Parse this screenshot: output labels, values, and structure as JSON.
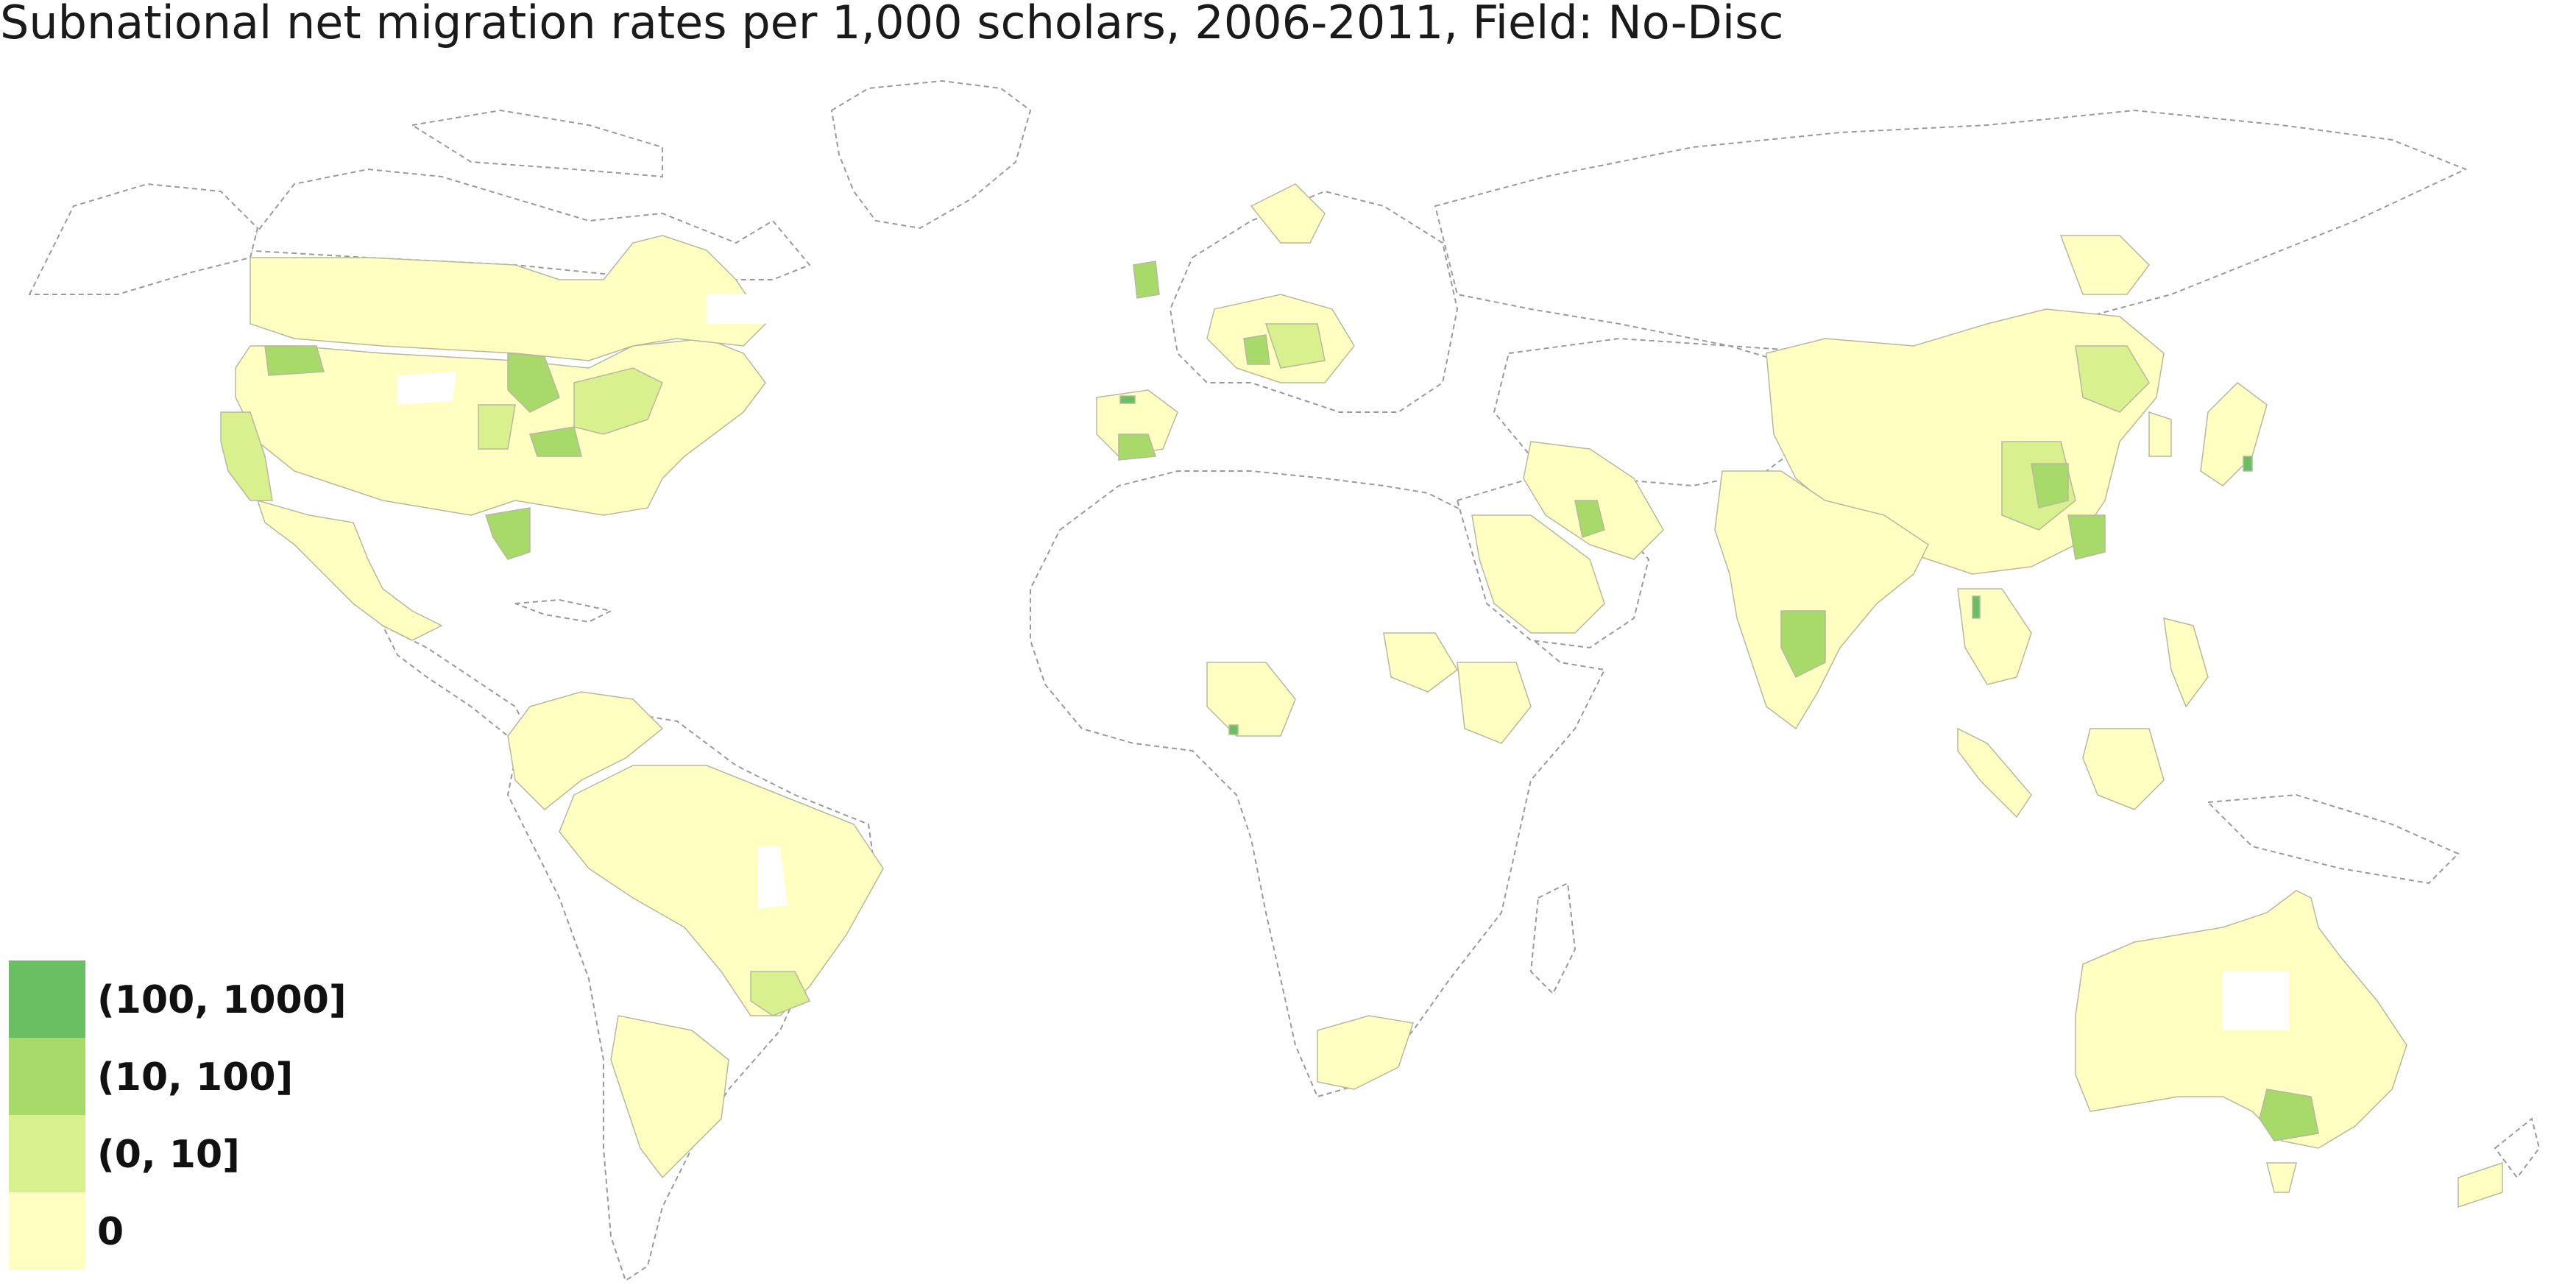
{
  "title": "Subnational net migration rates per 1,000 scholars, 2006-2011, Field: No-Disc",
  "colors": {
    "background": "#ffffff",
    "border": "#9a9a9a",
    "no_data_fill": "#ffffff",
    "cat_zero": "#ffffc2",
    "cat_0_10": "#d9f08e",
    "cat_10_100": "#a8da6a",
    "cat_100_1000": "#6abf63"
  },
  "legend": {
    "items": [
      {
        "label": "(100, 1000]",
        "color": "#6abf63"
      },
      {
        "label": "(10, 100]",
        "color": "#a8da6a"
      },
      {
        "label": "(0, 10]",
        "color": "#d9f08e"
      },
      {
        "label": "0",
        "color": "#ffffc2"
      }
    ]
  }
}
